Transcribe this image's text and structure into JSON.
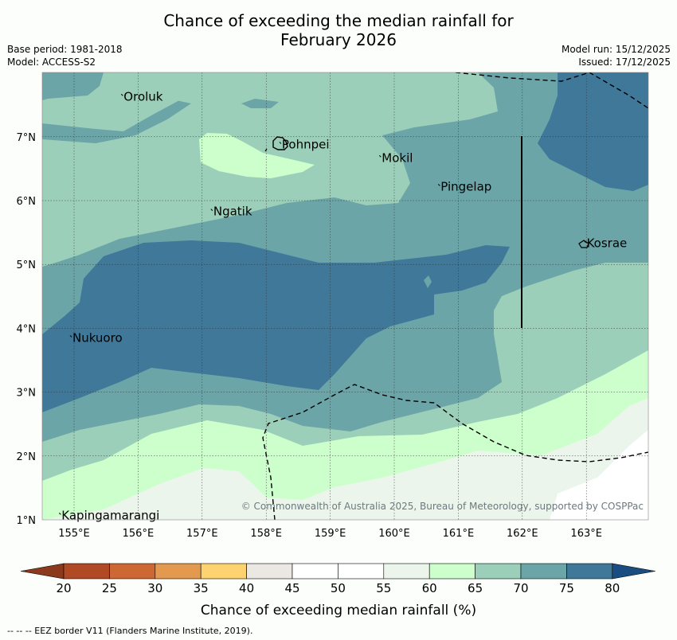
{
  "title_line1": "Chance of exceeding the median rainfall for",
  "title_line2": "February 2026",
  "meta": {
    "base_period": "Base period: 1981-2018",
    "model": "Model: ACCESS-S2",
    "model_run": "Model run: 15/12/2025",
    "issued": "Issued: 17/12/2025"
  },
  "places": [
    {
      "name": "Oroluk",
      "lon": 155.75,
      "lat": 7.63
    },
    {
      "name": "Pohnpei",
      "lon": 158.22,
      "lat": 6.88
    },
    {
      "name": "Mokil",
      "lon": 159.78,
      "lat": 6.67
    },
    {
      "name": "Pingelap",
      "lon": 160.7,
      "lat": 6.22
    },
    {
      "name": "Ngatik",
      "lon": 157.15,
      "lat": 5.83
    },
    {
      "name": "Kosrae",
      "lon": 162.98,
      "lat": 5.33
    },
    {
      "name": "Nukuoro",
      "lon": 154.95,
      "lat": 3.85
    },
    {
      "name": "Kapingamarangi",
      "lon": 154.78,
      "lat": 1.07
    }
  ],
  "axes": {
    "lat_ticks": [
      "1°N",
      "2°N",
      "3°N",
      "4°N",
      "5°N",
      "6°N",
      "7°N"
    ],
    "lon_ticks": [
      "155°E",
      "156°E",
      "157°E",
      "158°E",
      "159°E",
      "160°E",
      "161°E",
      "162°E",
      "163°E"
    ]
  },
  "copyright": "© Commonwealth of Australia 2025, Bureau of Meteorology, supported by COSPPac",
  "colorbar": {
    "ticks": [
      "20",
      "25",
      "30",
      "35",
      "40",
      "45",
      "50",
      "55",
      "60",
      "65",
      "70",
      "75",
      "80"
    ],
    "colors": [
      "#b04a24",
      "#cd6835",
      "#e39a4f",
      "#fdd36f",
      "#ebe8e4",
      "#ffffff",
      "#ffffff",
      "#ecf5eb",
      "#ccffcc",
      "#9ccfb9",
      "#6ba5a7",
      "#3f7898"
    ],
    "under_color": "#8b3a1d",
    "over_color": "#1a4e82",
    "label": "Chance of exceeding median rainfall (%)"
  },
  "footer": "--  --  -- EEZ border V11 (Flanders Marine Institute, 2019)."
}
